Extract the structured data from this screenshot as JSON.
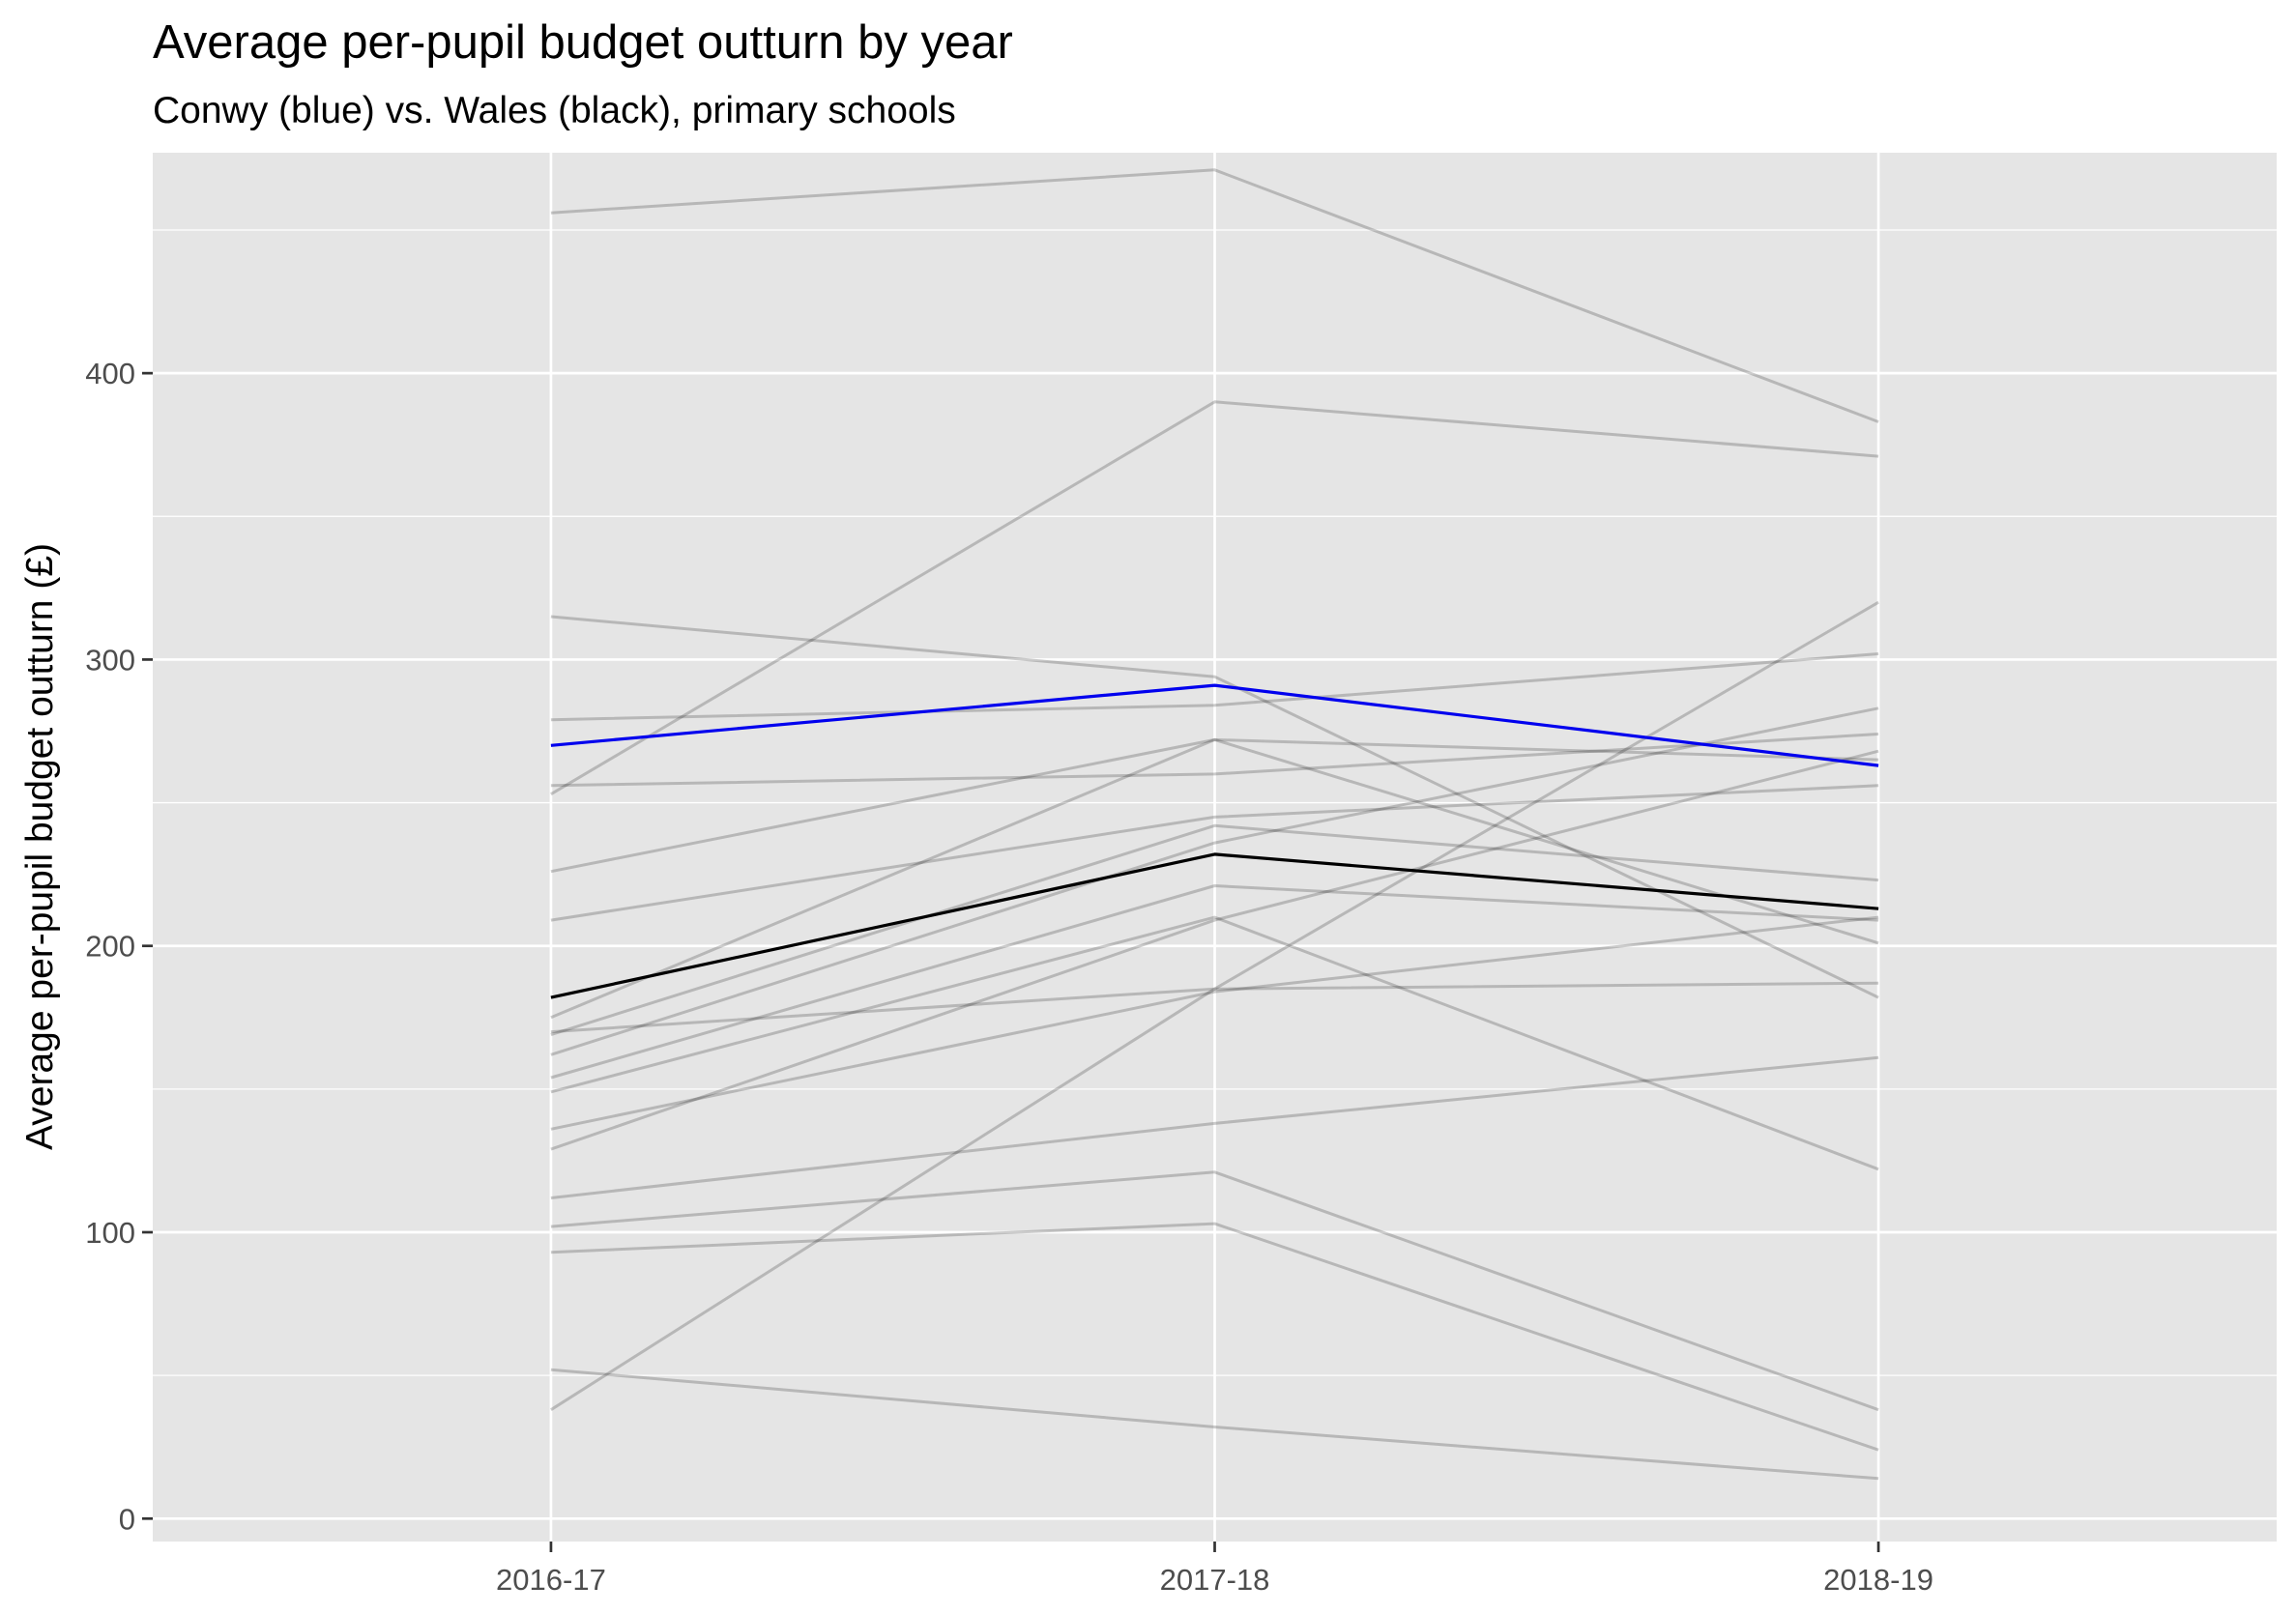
{
  "chart_data": {
    "type": "line",
    "title": "Average per-pupil budget outturn by year",
    "subtitle": "Conwy (blue) vs. Wales (black), primary schools",
    "xlabel": "",
    "ylabel": "Average per-pupil budget outturn (£)",
    "categories": [
      "2016-17",
      "2017-18",
      "2018-19"
    ],
    "ylim": [
      -8,
      477
    ],
    "yticks": [
      0,
      100,
      200,
      300,
      400
    ],
    "grid": true,
    "legend": "none",
    "colors": {
      "panel": "#e5e5e5",
      "grid": "#ffffff",
      "tick_mark": "#333333",
      "tick_text": "#4d4d4d",
      "other_series": "#000000",
      "highlight": "#0000ee",
      "wales": "#000000"
    },
    "series": [
      {
        "values": [
          456,
          471,
          383
        ],
        "role": "other"
      },
      {
        "values": [
          253,
          390,
          371
        ],
        "role": "other"
      },
      {
        "values": [
          315,
          294,
          182
        ],
        "role": "other"
      },
      {
        "values": [
          279,
          284,
          302
        ],
        "role": "other"
      },
      {
        "values": [
          256,
          260,
          274
        ],
        "role": "other"
      },
      {
        "values": [
          226,
          272,
          265
        ],
        "role": "other"
      },
      {
        "values": [
          209,
          245,
          256
        ],
        "role": "other"
      },
      {
        "values": [
          175,
          272,
          201
        ],
        "role": "other"
      },
      {
        "values": [
          169,
          242,
          223
        ],
        "role": "other"
      },
      {
        "values": [
          162,
          236,
          283
        ],
        "role": "other"
      },
      {
        "values": [
          154,
          221,
          209
        ],
        "role": "other"
      },
      {
        "values": [
          149,
          210,
          122
        ],
        "role": "other"
      },
      {
        "values": [
          170,
          185,
          187
        ],
        "role": "other"
      },
      {
        "values": [
          136,
          184,
          210
        ],
        "role": "other"
      },
      {
        "values": [
          129,
          209,
          268
        ],
        "role": "other"
      },
      {
        "values": [
          38,
          185,
          320
        ],
        "role": "other"
      },
      {
        "values": [
          112,
          138,
          161
        ],
        "role": "other"
      },
      {
        "values": [
          102,
          121,
          38
        ],
        "role": "other"
      },
      {
        "values": [
          93,
          103,
          24
        ],
        "role": "other"
      },
      {
        "values": [
          52,
          32,
          14
        ],
        "role": "other"
      },
      {
        "values": [
          182,
          232,
          213
        ],
        "role": "wales"
      },
      {
        "values": [
          270,
          291,
          263
        ],
        "role": "conwy"
      }
    ]
  }
}
